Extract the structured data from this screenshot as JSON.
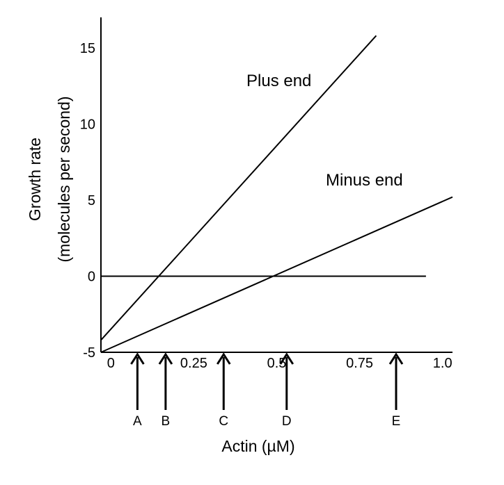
{
  "chart_data": {
    "type": "line",
    "title": "",
    "xlabel": "Actin (µM)",
    "ylabel_line1": "Growth rate",
    "ylabel_line2": "(molecules per second)",
    "xlim": [
      -0.03,
      1.03
    ],
    "ylim": [
      -5,
      17
    ],
    "x_ticks": [
      {
        "value": 0,
        "label": "0"
      },
      {
        "value": 0.25,
        "label": "0.25"
      },
      {
        "value": 0.5,
        "label": "0.5"
      },
      {
        "value": 0.75,
        "label": "0.75"
      },
      {
        "value": 1.0,
        "label": "1.0"
      }
    ],
    "y_ticks": [
      {
        "value": 15,
        "label": "15"
      },
      {
        "value": 10,
        "label": "10"
      },
      {
        "value": 5,
        "label": "5"
      },
      {
        "value": 0,
        "label": "0"
      },
      {
        "value": -5,
        "label": "-5"
      }
    ],
    "grid": false,
    "legend": "none",
    "series": [
      {
        "name": "Plus end",
        "x": [
          -0.03,
          0.8
        ],
        "y": [
          -4.2,
          15.8
        ]
      },
      {
        "name": "Minus end",
        "x": [
          -0.03,
          1.03
        ],
        "y": [
          -5.0,
          5.2
        ]
      },
      {
        "name": "",
        "x": [
          -0.03,
          0.95
        ],
        "y": [
          0,
          0
        ]
      }
    ],
    "annotations": [
      {
        "label": "A",
        "x": 0.08
      },
      {
        "label": "B",
        "x": 0.165
      },
      {
        "label": "C",
        "x": 0.34
      },
      {
        "label": "D",
        "x": 0.53
      },
      {
        "label": "E",
        "x": 0.86
      }
    ]
  }
}
